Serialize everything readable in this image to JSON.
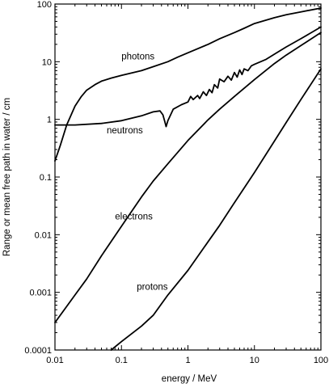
{
  "chart_data": {
    "type": "line",
    "title": "",
    "xlabel": "energy / MeV",
    "ylabel": "Range or mean free path in water / cm",
    "xscale": "log",
    "yscale": "log",
    "xlim": [
      0.01,
      100
    ],
    "ylim": [
      0.0001,
      100
    ],
    "grid": false,
    "legend": "none",
    "line_color": "#000000",
    "x_ticks": [
      {
        "value": 0.01,
        "label": "0.01"
      },
      {
        "value": 0.1,
        "label": "0.1"
      },
      {
        "value": 1,
        "label": "1"
      },
      {
        "value": 10,
        "label": "10"
      },
      {
        "value": 100,
        "label": "100"
      }
    ],
    "y_ticks": [
      {
        "value": 0.0001,
        "label": "0.0001"
      },
      {
        "value": 0.001,
        "label": "0.001"
      },
      {
        "value": 0.01,
        "label": "0.01"
      },
      {
        "value": 0.1,
        "label": "0.1"
      },
      {
        "value": 1,
        "label": "1"
      },
      {
        "value": 10,
        "label": "10"
      },
      {
        "value": 100,
        "label": "100"
      }
    ],
    "series": [
      {
        "name": "photons",
        "label_at": {
          "x": 0.1,
          "y": 11
        },
        "points": [
          [
            0.01,
            0.19
          ],
          [
            0.012,
            0.35
          ],
          [
            0.015,
            0.8
          ],
          [
            0.02,
            1.7
          ],
          [
            0.025,
            2.5
          ],
          [
            0.03,
            3.2
          ],
          [
            0.04,
            4.0
          ],
          [
            0.05,
            4.6
          ],
          [
            0.07,
            5.2
          ],
          [
            0.1,
            5.8
          ],
          [
            0.2,
            7.0
          ],
          [
            0.3,
            8.2
          ],
          [
            0.5,
            10
          ],
          [
            0.7,
            12
          ],
          [
            1,
            14.3
          ],
          [
            2,
            20
          ],
          [
            3,
            25
          ],
          [
            5,
            32
          ],
          [
            7,
            38
          ],
          [
            10,
            46
          ],
          [
            20,
            58
          ],
          [
            30,
            65
          ],
          [
            50,
            73
          ],
          [
            100,
            85
          ]
        ]
      },
      {
        "name": "neutrons",
        "label_at": {
          "x": 0.06,
          "y": 0.57
        },
        "points": [
          [
            0.01,
            0.8
          ],
          [
            0.02,
            0.8
          ],
          [
            0.05,
            0.85
          ],
          [
            0.1,
            0.95
          ],
          [
            0.2,
            1.15
          ],
          [
            0.3,
            1.35
          ],
          [
            0.38,
            1.4
          ],
          [
            0.42,
            1.2
          ],
          [
            0.45,
            0.9
          ],
          [
            0.47,
            0.75
          ],
          [
            0.5,
            0.95
          ],
          [
            0.6,
            1.5
          ],
          [
            0.8,
            1.8
          ],
          [
            1.0,
            2.0
          ],
          [
            1.1,
            2.5
          ],
          [
            1.2,
            2.2
          ],
          [
            1.4,
            2.6
          ],
          [
            1.5,
            2.3
          ],
          [
            1.7,
            3.0
          ],
          [
            1.9,
            2.6
          ],
          [
            2.1,
            3.3
          ],
          [
            2.3,
            2.9
          ],
          [
            2.5,
            4.0
          ],
          [
            2.8,
            3.5
          ],
          [
            3.0,
            5.0
          ],
          [
            3.5,
            4.5
          ],
          [
            4.0,
            5.6
          ],
          [
            4.5,
            4.8
          ],
          [
            5.0,
            6.5
          ],
          [
            5.5,
            5.4
          ],
          [
            6.0,
            7.2
          ],
          [
            6.5,
            6.0
          ],
          [
            7.0,
            7.5
          ],
          [
            8.0,
            7.0
          ],
          [
            9.0,
            8.5
          ],
          [
            10,
            9.0
          ],
          [
            15,
            11
          ],
          [
            20,
            13.5
          ],
          [
            30,
            18
          ],
          [
            50,
            25
          ],
          [
            100,
            40
          ]
        ]
      },
      {
        "name": "electrons",
        "label_at": {
          "x": 0.08,
          "y": 0.0185
        },
        "points": [
          [
            0.01,
            0.0003
          ],
          [
            0.02,
            0.0009
          ],
          [
            0.03,
            0.0017
          ],
          [
            0.05,
            0.0043
          ],
          [
            0.1,
            0.014
          ],
          [
            0.2,
            0.045
          ],
          [
            0.3,
            0.085
          ],
          [
            0.5,
            0.17
          ],
          [
            1,
            0.43
          ],
          [
            2,
            0.98
          ],
          [
            3,
            1.5
          ],
          [
            5,
            2.5
          ],
          [
            10,
            4.9
          ],
          [
            20,
            9.3
          ],
          [
            30,
            13
          ],
          [
            50,
            19
          ],
          [
            100,
            32
          ]
        ]
      },
      {
        "name": "protons",
        "label_at": {
          "x": 0.17,
          "y": 0.0011
        },
        "points": [
          [
            0.07,
            0.0001
          ],
          [
            0.1,
            0.00014
          ],
          [
            0.2,
            0.00026
          ],
          [
            0.3,
            0.0004
          ],
          [
            0.5,
            0.0009
          ],
          [
            1,
            0.0024
          ],
          [
            2,
            0.0075
          ],
          [
            3,
            0.0145
          ],
          [
            5,
            0.036
          ],
          [
            10,
            0.12
          ],
          [
            20,
            0.42
          ],
          [
            30,
            0.88
          ],
          [
            50,
            2.2
          ],
          [
            100,
            7.5
          ]
        ]
      }
    ]
  }
}
